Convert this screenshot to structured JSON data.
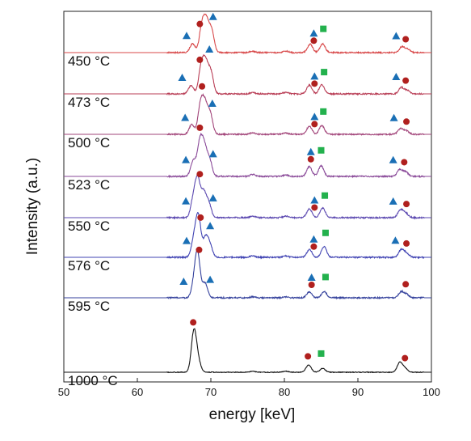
{
  "chart_data": {
    "type": "line",
    "title": "",
    "xlabel": "energy [keV]",
    "ylabel": "Intensity (a.u.)",
    "xlim": [
      50,
      100
    ],
    "xticks": [
      50,
      60,
      70,
      80,
      90,
      100
    ],
    "y_ticks_shown": false,
    "grid": false,
    "legend": "none",
    "marker_colors": {
      "triangle": "#1a6fb5",
      "circle": "#b0201e",
      "square": "#23b14d"
    },
    "series": [
      {
        "name": "450 °C",
        "color": "#d8494a",
        "peaks": [
          [
            67.5,
            0.18
          ],
          [
            68.8,
            0.55
          ],
          [
            69.4,
            0.58
          ],
          [
            70.1,
            0.45
          ],
          [
            75.7,
            0.03
          ],
          [
            80.2,
            0.03
          ],
          [
            83.5,
            0.17
          ],
          [
            85.2,
            0.18
          ],
          [
            96.0,
            0.12
          ],
          [
            96.8,
            0.07
          ]
        ],
        "markers": [
          {
            "shape": "circle",
            "x": 68.5
          },
          {
            "shape": "triangle",
            "x": 70.3
          },
          {
            "shape": "triangle",
            "x": 66.7
          },
          {
            "shape": "triangle",
            "x": 84.0
          },
          {
            "shape": "circle",
            "x": 84.0
          },
          {
            "shape": "square",
            "x": 85.3
          },
          {
            "shape": "triangle",
            "x": 95.2
          },
          {
            "shape": "circle",
            "x": 96.5
          }
        ]
      },
      {
        "name": "473 °C",
        "color": "#b93e56",
        "peaks": [
          [
            67.3,
            0.17
          ],
          [
            68.7,
            0.56
          ],
          [
            69.3,
            0.57
          ],
          [
            70.0,
            0.44
          ],
          [
            75.7,
            0.03
          ],
          [
            80.2,
            0.03
          ],
          [
            83.4,
            0.18
          ],
          [
            85.1,
            0.19
          ],
          [
            95.9,
            0.13
          ],
          [
            96.7,
            0.07
          ]
        ],
        "markers": [
          {
            "shape": "circle",
            "x": 68.5
          },
          {
            "shape": "triangle",
            "x": 69.8
          },
          {
            "shape": "triangle",
            "x": 66.1
          },
          {
            "shape": "triangle",
            "x": 84.1
          },
          {
            "shape": "circle",
            "x": 84.1
          },
          {
            "shape": "square",
            "x": 85.4
          },
          {
            "shape": "triangle",
            "x": 95.2
          },
          {
            "shape": "circle",
            "x": 96.5
          }
        ]
      },
      {
        "name": "500 °C",
        "color": "#a2457a",
        "peaks": [
          [
            67.4,
            0.2
          ],
          [
            68.6,
            0.6
          ],
          [
            69.2,
            0.56
          ],
          [
            69.9,
            0.42
          ],
          [
            75.7,
            0.03
          ],
          [
            80.2,
            0.03
          ],
          [
            83.4,
            0.17
          ],
          [
            85.1,
            0.18
          ],
          [
            95.8,
            0.12
          ],
          [
            96.6,
            0.07
          ]
        ],
        "markers": [
          {
            "shape": "circle",
            "x": 68.8
          },
          {
            "shape": "triangle",
            "x": 70.2
          },
          {
            "shape": "triangle",
            "x": 66.5
          },
          {
            "shape": "triangle",
            "x": 84.1
          },
          {
            "shape": "circle",
            "x": 84.1
          },
          {
            "shape": "square",
            "x": 85.3
          },
          {
            "shape": "triangle",
            "x": 94.9
          },
          {
            "shape": "circle",
            "x": 96.6
          }
        ]
      },
      {
        "name": "523 °C",
        "color": "#8a4a99",
        "peaks": [
          [
            67.6,
            0.32
          ],
          [
            68.5,
            0.68
          ],
          [
            69.1,
            0.55
          ],
          [
            69.8,
            0.35
          ],
          [
            75.7,
            0.04
          ],
          [
            80.2,
            0.03
          ],
          [
            83.4,
            0.2
          ],
          [
            85.0,
            0.22
          ],
          [
            95.7,
            0.14
          ],
          [
            96.5,
            0.09
          ]
        ],
        "markers": [
          {
            "shape": "circle",
            "x": 68.5
          },
          {
            "shape": "triangle",
            "x": 70.3
          },
          {
            "shape": "triangle",
            "x": 66.6
          },
          {
            "shape": "triangle",
            "x": 83.6
          },
          {
            "shape": "circle",
            "x": 83.6
          },
          {
            "shape": "square",
            "x": 85.0
          },
          {
            "shape": "triangle",
            "x": 94.8
          },
          {
            "shape": "circle",
            "x": 96.3
          }
        ]
      },
      {
        "name": "550 °C",
        "color": "#5b48b0",
        "peaks": [
          [
            67.6,
            0.35
          ],
          [
            68.2,
            0.75
          ],
          [
            69.0,
            0.5
          ],
          [
            69.7,
            0.3
          ],
          [
            75.7,
            0.03
          ],
          [
            80.2,
            0.03
          ],
          [
            83.4,
            0.18
          ],
          [
            85.2,
            0.2
          ],
          [
            95.8,
            0.16
          ],
          [
            96.5,
            0.09
          ]
        ],
        "markers": [
          {
            "shape": "circle",
            "x": 68.5
          },
          {
            "shape": "triangle",
            "x": 70.3
          },
          {
            "shape": "triangle",
            "x": 66.6
          },
          {
            "shape": "triangle",
            "x": 84.1
          },
          {
            "shape": "circle",
            "x": 84.1
          },
          {
            "shape": "square",
            "x": 85.5
          },
          {
            "shape": "triangle",
            "x": 94.8
          },
          {
            "shape": "circle",
            "x": 96.6
          }
        ]
      },
      {
        "name": "576 °C",
        "color": "#4144b3",
        "peaks": [
          [
            67.7,
            0.35
          ],
          [
            68.3,
            0.82
          ],
          [
            69.3,
            0.4
          ],
          [
            69.9,
            0.22
          ],
          [
            75.7,
            0.03
          ],
          [
            80.2,
            0.03
          ],
          [
            83.4,
            0.16
          ],
          [
            85.4,
            0.22
          ],
          [
            95.9,
            0.16
          ],
          [
            96.6,
            0.08
          ]
        ],
        "markers": [
          {
            "shape": "circle",
            "x": 68.6
          },
          {
            "shape": "triangle",
            "x": 69.9
          },
          {
            "shape": "triangle",
            "x": 66.7
          },
          {
            "shape": "triangle",
            "x": 84.0
          },
          {
            "shape": "circle",
            "x": 84.0
          },
          {
            "shape": "square",
            "x": 85.6
          },
          {
            "shape": "triangle",
            "x": 95.1
          },
          {
            "shape": "circle",
            "x": 96.6
          }
        ]
      },
      {
        "name": "595 °C",
        "color": "#34419c",
        "peaks": [
          [
            67.7,
            0.25
          ],
          [
            68.2,
            0.88
          ],
          [
            69.2,
            0.3
          ],
          [
            75.7,
            0.02
          ],
          [
            80.2,
            0.02
          ],
          [
            83.4,
            0.12
          ],
          [
            85.4,
            0.13
          ],
          [
            95.9,
            0.12
          ],
          [
            96.6,
            0.07
          ]
        ],
        "markers": [
          {
            "shape": "circle",
            "x": 68.4
          },
          {
            "shape": "triangle",
            "x": 69.9
          },
          {
            "shape": "triangle",
            "x": 66.3
          },
          {
            "shape": "circle",
            "x": 83.7
          },
          {
            "shape": "triangle",
            "x": 83.7
          },
          {
            "shape": "square",
            "x": 85.6
          },
          {
            "shape": "circle",
            "x": 96.5
          }
        ]
      },
      {
        "name": "1000 °C",
        "color": "#111111",
        "peaks": [
          [
            67.7,
            0.85
          ],
          [
            68.3,
            0.2
          ],
          [
            75.7,
            0.02
          ],
          [
            80.2,
            0.02
          ],
          [
            83.3,
            0.15
          ],
          [
            85.2,
            0.08
          ],
          [
            95.7,
            0.2
          ],
          [
            96.4,
            0.08
          ]
        ],
        "markers": [
          {
            "shape": "circle",
            "x": 67.6
          },
          {
            "shape": "circle",
            "x": 83.2
          },
          {
            "shape": "square",
            "x": 85.0
          },
          {
            "shape": "circle",
            "x": 96.4
          }
        ]
      }
    ]
  }
}
